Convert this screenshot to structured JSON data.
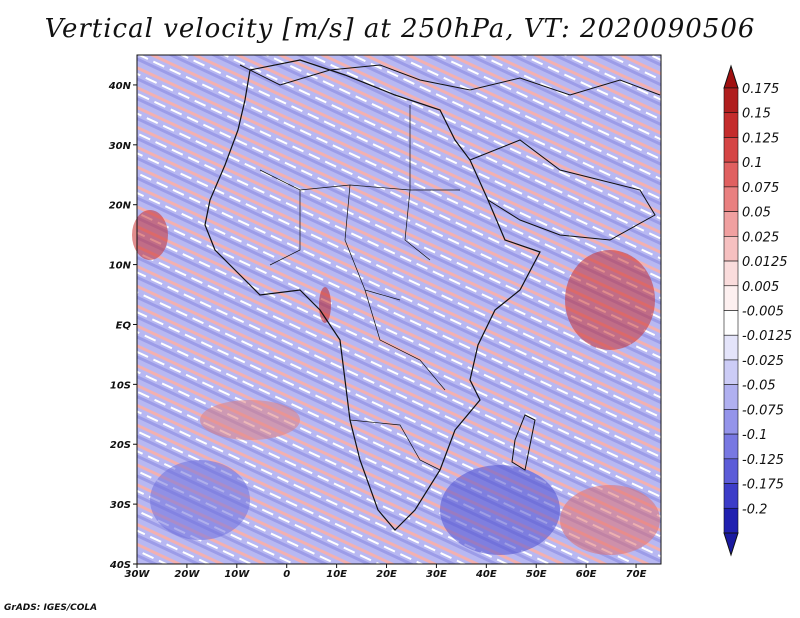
{
  "title": "Vertical velocity [m/s] at 250hPa, VT: 2020090506",
  "credit": "GrADS: IGES/COLA",
  "map": {
    "lon_range": [
      -30,
      75
    ],
    "lat_range": [
      -40,
      45
    ],
    "lon_ticks": [
      {
        "value": -30,
        "label": "30W"
      },
      {
        "value": -20,
        "label": "20W"
      },
      {
        "value": -10,
        "label": "10W"
      },
      {
        "value": 0,
        "label": "0"
      },
      {
        "value": 10,
        "label": "10E"
      },
      {
        "value": 20,
        "label": "20E"
      },
      {
        "value": 30,
        "label": "30E"
      },
      {
        "value": 40,
        "label": "40E"
      },
      {
        "value": 50,
        "label": "50E"
      },
      {
        "value": 60,
        "label": "60E"
      },
      {
        "value": 70,
        "label": "70E"
      }
    ],
    "lat_ticks": [
      {
        "value": 40,
        "label": "40N"
      },
      {
        "value": 30,
        "label": "30N"
      },
      {
        "value": 20,
        "label": "20N"
      },
      {
        "value": 10,
        "label": "10N"
      },
      {
        "value": 0,
        "label": "EQ"
      },
      {
        "value": -10,
        "label": "10S"
      },
      {
        "value": -20,
        "label": "20S"
      },
      {
        "value": -30,
        "label": "30S"
      },
      {
        "value": -40,
        "label": "40S"
      }
    ]
  },
  "colorbar": {
    "levels": [
      {
        "label": "0.175",
        "color": "#b01e1e"
      },
      {
        "label": "0.15",
        "color": "#c42c2c"
      },
      {
        "label": "0.125",
        "color": "#d54545"
      },
      {
        "label": "0.1",
        "color": "#e06060"
      },
      {
        "label": "0.075",
        "color": "#e98080"
      },
      {
        "label": "0.05",
        "color": "#f0a0a0"
      },
      {
        "label": "0.025",
        "color": "#f6c0c0"
      },
      {
        "label": "0.0125",
        "color": "#fadcdc"
      },
      {
        "label": "0.005",
        "color": "#fdf0f0"
      },
      {
        "label": "-0.005",
        "color": "#ffffff"
      },
      {
        "label": "-0.0125",
        "color": "#e4e4fa"
      },
      {
        "label": "-0.025",
        "color": "#ccccf6"
      },
      {
        "label": "-0.05",
        "color": "#b0b0f0"
      },
      {
        "label": "-0.075",
        "color": "#9494ea"
      },
      {
        "label": "-0.1",
        "color": "#7878e2"
      },
      {
        "label": "-0.125",
        "color": "#5c5cd8"
      },
      {
        "label": "-0.175",
        "color": "#3c3cc8"
      },
      {
        "label": "-0.2",
        "color": "#2020b0"
      }
    ],
    "top_color": "#a01010",
    "bottom_color": "#1a1aa0"
  }
}
